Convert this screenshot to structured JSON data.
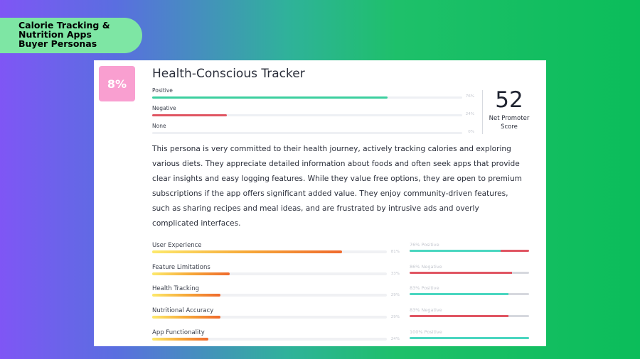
{
  "badge": {
    "line1": "Calorie Tracking &",
    "line2": "Nutrition Apps",
    "line3": "Buyer Personas"
  },
  "persona": {
    "share": "8%",
    "title": "Health-Conscious Tracker",
    "nps_value": "52",
    "nps_label_1": "Net Promoter",
    "nps_label_2": "Score",
    "description": "This persona is very committed to their health journey, actively tracking calories and exploring various diets. They appreciate detailed information about foods and often seek apps that provide clear insights and easy logging features. While they value free options, they are open to premium subscriptions if the app offers significant added value. They enjoy community-driven features, such as sharing recipes and meal ideas, and are frustrated by intrusive ads and overly complicated interfaces."
  },
  "sentiment": [
    {
      "label": "Positive",
      "value": "76%",
      "fraction": 0.76,
      "color": "#3ccf9f"
    },
    {
      "label": "Negative",
      "value": "24%",
      "fraction": 0.24,
      "color": "#e05562"
    },
    {
      "label": "None",
      "value": "0%",
      "fraction": 0,
      "color": "#cccccc"
    }
  ],
  "metrics": [
    {
      "label": "User Experience",
      "value": "81%",
      "fraction": 0.81,
      "sentiment_label": "76% Positive",
      "sentiment_fraction": 0.76,
      "sentiment_color": "#4ad6c0",
      "rest_color": "#e05562"
    },
    {
      "label": "Feature Limitations",
      "value": "33%",
      "fraction": 0.33,
      "sentiment_label": "86% Negative",
      "sentiment_fraction": 0.86,
      "sentiment_color": "#e05562",
      "rest_color": "#d6d8de"
    },
    {
      "label": "Health Tracking",
      "value": "29%",
      "fraction": 0.29,
      "sentiment_label": "83% Positive",
      "sentiment_fraction": 0.83,
      "sentiment_color": "#4ad6c0",
      "rest_color": "#d6d8de"
    },
    {
      "label": "Nutritional Accuracy",
      "value": "29%",
      "fraction": 0.29,
      "sentiment_label": "83% Negative",
      "sentiment_fraction": 0.83,
      "sentiment_color": "#e05562",
      "rest_color": "#d6d8de"
    },
    {
      "label": "App Functionality",
      "value": "24%",
      "fraction": 0.24,
      "sentiment_label": "100% Positive",
      "sentiment_fraction": 1.0,
      "sentiment_color": "#4ad6c0",
      "rest_color": "#d6d8de"
    }
  ]
}
